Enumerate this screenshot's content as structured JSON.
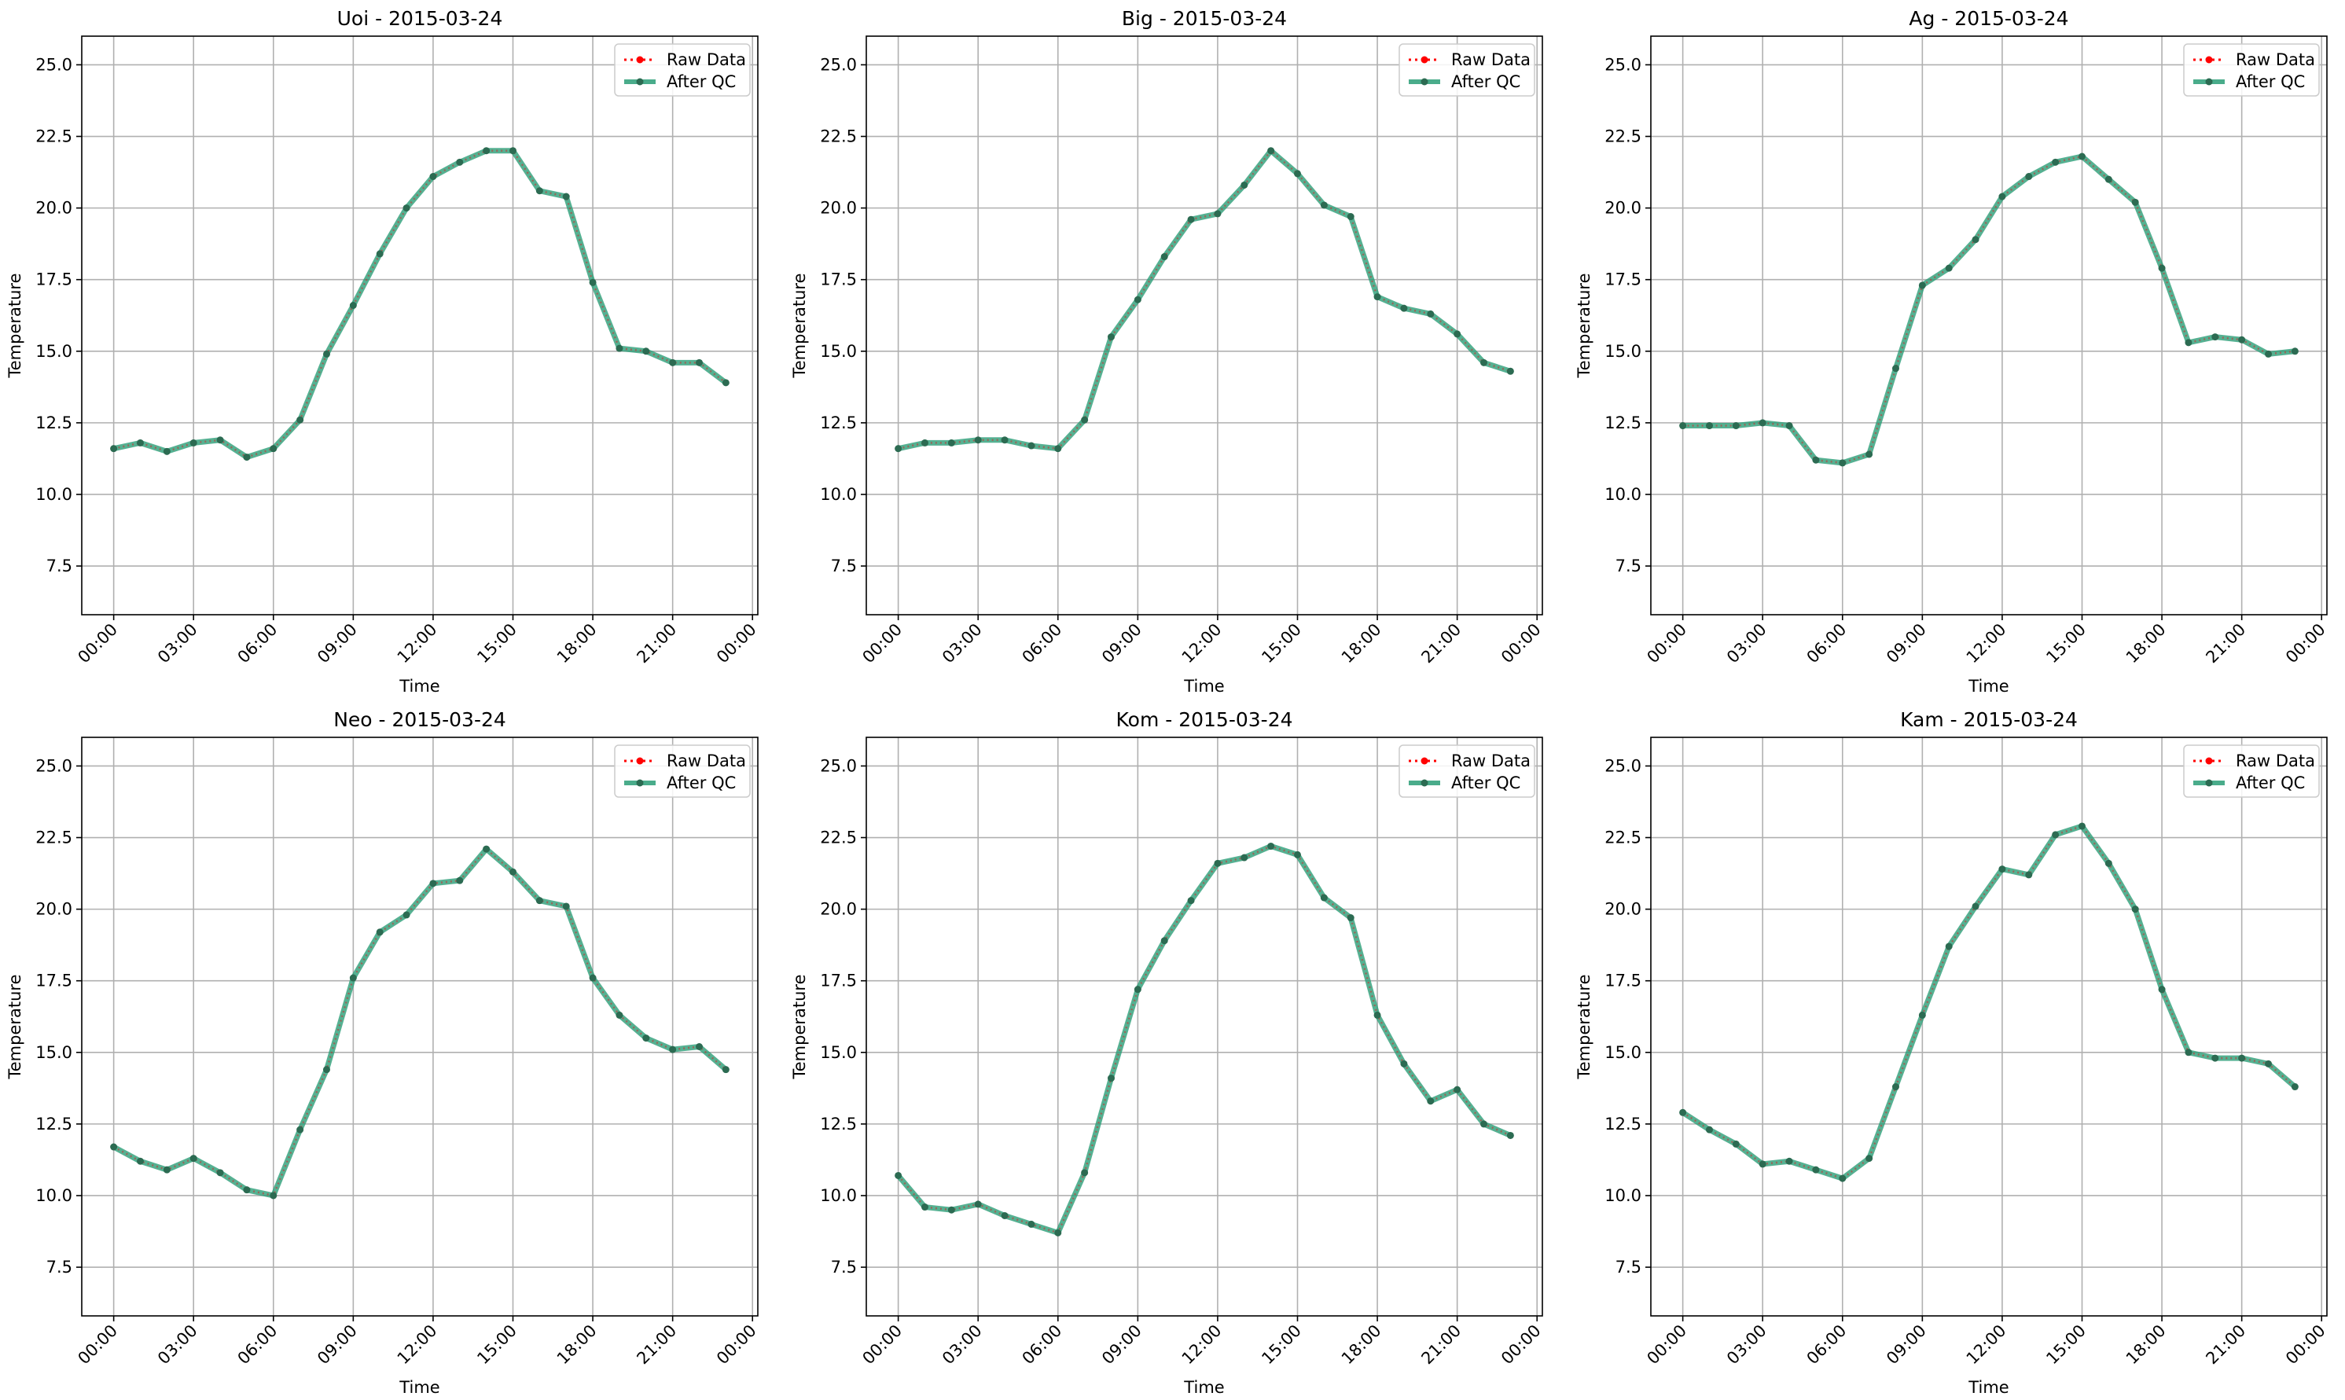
{
  "chart_data": [
    {
      "type": "line",
      "title": "Uoi - 2015-03-24",
      "xlabel": "Time",
      "ylabel": "Temperature",
      "xticks": [
        "00:00",
        "03:00",
        "06:00",
        "09:00",
        "12:00",
        "15:00",
        "18:00",
        "21:00",
        "00:00"
      ],
      "xlim_hours": [
        -1.2,
        24.2
      ],
      "ylim": [
        5.8,
        26.0
      ],
      "yticks": [
        "7.5",
        "10.0",
        "12.5",
        "15.0",
        "17.5",
        "20.0",
        "22.5",
        "25.0"
      ],
      "grid": true,
      "legend_position": "top-right",
      "x_hours": [
        0,
        1,
        2,
        3,
        4,
        5,
        6,
        7,
        8,
        9,
        10,
        11,
        12,
        13,
        14,
        15,
        16,
        17,
        18,
        19,
        20,
        21,
        22,
        23
      ],
      "series": [
        {
          "name": "Raw Data",
          "color": "#ff0000",
          "style": "dotted",
          "values": [
            11.6,
            11.8,
            11.5,
            11.8,
            11.9,
            11.3,
            11.6,
            12.6,
            14.9,
            16.6,
            18.4,
            20.0,
            21.1,
            21.6,
            22.0,
            22.0,
            20.6,
            20.4,
            17.4,
            15.1,
            15.0,
            14.6,
            14.6,
            13.9
          ]
        },
        {
          "name": "After QC",
          "color": "#2a9d77",
          "style": "solid",
          "values": [
            11.6,
            11.8,
            11.5,
            11.8,
            11.9,
            11.3,
            11.6,
            12.6,
            14.9,
            16.6,
            18.4,
            20.0,
            21.1,
            21.6,
            22.0,
            22.0,
            20.6,
            20.4,
            17.4,
            15.1,
            15.0,
            14.6,
            14.6,
            13.9
          ]
        }
      ]
    },
    {
      "type": "line",
      "title": "Big - 2015-03-24",
      "xlabel": "Time",
      "ylabel": "Temperature",
      "xticks": [
        "00:00",
        "03:00",
        "06:00",
        "09:00",
        "12:00",
        "15:00",
        "18:00",
        "21:00",
        "00:00"
      ],
      "xlim_hours": [
        -1.2,
        24.2
      ],
      "ylim": [
        5.8,
        26.0
      ],
      "yticks": [
        "7.5",
        "10.0",
        "12.5",
        "15.0",
        "17.5",
        "20.0",
        "22.5",
        "25.0"
      ],
      "grid": true,
      "legend_position": "top-right",
      "x_hours": [
        0,
        1,
        2,
        3,
        4,
        5,
        6,
        7,
        8,
        9,
        10,
        11,
        12,
        13,
        14,
        15,
        16,
        17,
        18,
        19,
        20,
        21,
        22,
        23
      ],
      "series": [
        {
          "name": "Raw Data",
          "color": "#ff0000",
          "style": "dotted",
          "values": [
            11.6,
            11.8,
            11.8,
            11.9,
            11.9,
            11.7,
            11.6,
            12.6,
            15.5,
            16.8,
            18.3,
            19.6,
            19.8,
            20.8,
            22.0,
            21.2,
            20.1,
            19.7,
            16.9,
            16.5,
            16.3,
            15.6,
            14.6,
            14.3
          ]
        },
        {
          "name": "After QC",
          "color": "#2a9d77",
          "style": "solid",
          "values": [
            11.6,
            11.8,
            11.8,
            11.9,
            11.9,
            11.7,
            11.6,
            12.6,
            15.5,
            16.8,
            18.3,
            19.6,
            19.8,
            20.8,
            22.0,
            21.2,
            20.1,
            19.7,
            16.9,
            16.5,
            16.3,
            15.6,
            14.6,
            14.3
          ]
        }
      ]
    },
    {
      "type": "line",
      "title": "Ag - 2015-03-24",
      "xlabel": "Time",
      "ylabel": "Temperature",
      "xticks": [
        "00:00",
        "03:00",
        "06:00",
        "09:00",
        "12:00",
        "15:00",
        "18:00",
        "21:00",
        "00:00"
      ],
      "xlim_hours": [
        -1.2,
        24.2
      ],
      "ylim": [
        5.8,
        26.0
      ],
      "yticks": [
        "7.5",
        "10.0",
        "12.5",
        "15.0",
        "17.5",
        "20.0",
        "22.5",
        "25.0"
      ],
      "grid": true,
      "legend_position": "top-right",
      "x_hours": [
        0,
        1,
        2,
        3,
        4,
        5,
        6,
        7,
        8,
        9,
        10,
        11,
        12,
        13,
        14,
        15,
        16,
        17,
        18,
        19,
        20,
        21,
        22,
        23
      ],
      "series": [
        {
          "name": "Raw Data",
          "color": "#ff0000",
          "style": "dotted",
          "values": [
            12.4,
            12.4,
            12.4,
            12.5,
            12.4,
            11.2,
            11.1,
            11.4,
            14.4,
            17.3,
            17.9,
            18.9,
            20.4,
            21.1,
            21.6,
            21.8,
            21.0,
            20.2,
            17.9,
            15.3,
            15.5,
            15.4,
            14.9,
            15.0
          ]
        },
        {
          "name": "After QC",
          "color": "#2a9d77",
          "style": "solid",
          "values": [
            12.4,
            12.4,
            12.4,
            12.5,
            12.4,
            11.2,
            11.1,
            11.4,
            14.4,
            17.3,
            17.9,
            18.9,
            20.4,
            21.1,
            21.6,
            21.8,
            21.0,
            20.2,
            17.9,
            15.3,
            15.5,
            15.4,
            14.9,
            15.0
          ]
        }
      ]
    },
    {
      "type": "line",
      "title": "Neo - 2015-03-24",
      "xlabel": "Time",
      "ylabel": "Temperature",
      "xticks": [
        "00:00",
        "03:00",
        "06:00",
        "09:00",
        "12:00",
        "15:00",
        "18:00",
        "21:00",
        "00:00"
      ],
      "xlim_hours": [
        -1.2,
        24.2
      ],
      "ylim": [
        5.8,
        26.0
      ],
      "yticks": [
        "7.5",
        "10.0",
        "12.5",
        "15.0",
        "17.5",
        "20.0",
        "22.5",
        "25.0"
      ],
      "grid": true,
      "legend_position": "top-right",
      "x_hours": [
        0,
        1,
        2,
        3,
        4,
        5,
        6,
        7,
        8,
        9,
        10,
        11,
        12,
        13,
        14,
        15,
        16,
        17,
        18,
        19,
        20,
        21,
        22,
        23
      ],
      "series": [
        {
          "name": "Raw Data",
          "color": "#ff0000",
          "style": "dotted",
          "values": [
            11.7,
            11.2,
            10.9,
            11.3,
            10.8,
            10.2,
            10.0,
            12.3,
            14.4,
            17.6,
            19.2,
            19.8,
            20.9,
            21.0,
            22.1,
            21.3,
            20.3,
            20.1,
            17.6,
            16.3,
            15.5,
            15.1,
            15.2,
            14.4
          ]
        },
        {
          "name": "After QC",
          "color": "#2a9d77",
          "style": "solid",
          "values": [
            11.7,
            11.2,
            10.9,
            11.3,
            10.8,
            10.2,
            10.0,
            12.3,
            14.4,
            17.6,
            19.2,
            19.8,
            20.9,
            21.0,
            22.1,
            21.3,
            20.3,
            20.1,
            17.6,
            16.3,
            15.5,
            15.1,
            15.2,
            14.4
          ]
        }
      ]
    },
    {
      "type": "line",
      "title": "Kom - 2015-03-24",
      "xlabel": "Time",
      "ylabel": "Temperature",
      "xticks": [
        "00:00",
        "03:00",
        "06:00",
        "09:00",
        "12:00",
        "15:00",
        "18:00",
        "21:00",
        "00:00"
      ],
      "xlim_hours": [
        -1.2,
        24.2
      ],
      "ylim": [
        5.8,
        26.0
      ],
      "yticks": [
        "7.5",
        "10.0",
        "12.5",
        "15.0",
        "17.5",
        "20.0",
        "22.5",
        "25.0"
      ],
      "grid": true,
      "legend_position": "top-right",
      "x_hours": [
        0,
        1,
        2,
        3,
        4,
        5,
        6,
        7,
        8,
        9,
        10,
        11,
        12,
        13,
        14,
        15,
        16,
        17,
        18,
        19,
        20,
        21,
        22,
        23
      ],
      "series": [
        {
          "name": "Raw Data",
          "color": "#ff0000",
          "style": "dotted",
          "values": [
            10.7,
            9.6,
            9.5,
            9.7,
            9.3,
            9.0,
            8.7,
            10.8,
            14.1,
            17.2,
            18.9,
            20.3,
            21.6,
            21.8,
            22.2,
            21.9,
            20.4,
            19.7,
            16.3,
            14.6,
            13.3,
            13.7,
            12.5,
            12.1
          ]
        },
        {
          "name": "After QC",
          "color": "#2a9d77",
          "style": "solid",
          "values": [
            10.7,
            9.6,
            9.5,
            9.7,
            9.3,
            9.0,
            8.7,
            10.8,
            14.1,
            17.2,
            18.9,
            20.3,
            21.6,
            21.8,
            22.2,
            21.9,
            20.4,
            19.7,
            16.3,
            14.6,
            13.3,
            13.7,
            12.5,
            12.1
          ]
        }
      ]
    },
    {
      "type": "line",
      "title": "Kam - 2015-03-24",
      "xlabel": "Time",
      "ylabel": "Temperature",
      "xticks": [
        "00:00",
        "03:00",
        "06:00",
        "09:00",
        "12:00",
        "15:00",
        "18:00",
        "21:00",
        "00:00"
      ],
      "xlim_hours": [
        -1.2,
        24.2
      ],
      "ylim": [
        5.8,
        26.0
      ],
      "yticks": [
        "7.5",
        "10.0",
        "12.5",
        "15.0",
        "17.5",
        "20.0",
        "22.5",
        "25.0"
      ],
      "grid": true,
      "legend_position": "top-right",
      "x_hours": [
        0,
        1,
        2,
        3,
        4,
        5,
        6,
        7,
        8,
        9,
        10,
        11,
        12,
        13,
        14,
        15,
        16,
        17,
        18,
        19,
        20,
        21,
        22,
        23
      ],
      "series": [
        {
          "name": "Raw Data",
          "color": "#ff0000",
          "style": "dotted",
          "values": [
            12.9,
            12.3,
            11.8,
            11.1,
            11.2,
            10.9,
            10.6,
            11.3,
            13.8,
            16.3,
            18.7,
            20.1,
            21.4,
            21.2,
            22.6,
            22.9,
            21.6,
            20.0,
            17.2,
            15.0,
            14.8,
            14.8,
            14.6,
            13.8
          ]
        },
        {
          "name": "After QC",
          "color": "#2a9d77",
          "style": "solid",
          "values": [
            12.9,
            12.3,
            11.8,
            11.1,
            11.2,
            10.9,
            10.6,
            11.3,
            13.8,
            16.3,
            18.7,
            20.1,
            21.4,
            21.2,
            22.6,
            22.9,
            21.6,
            20.0,
            17.2,
            15.0,
            14.8,
            14.8,
            14.6,
            13.8
          ]
        }
      ]
    }
  ]
}
